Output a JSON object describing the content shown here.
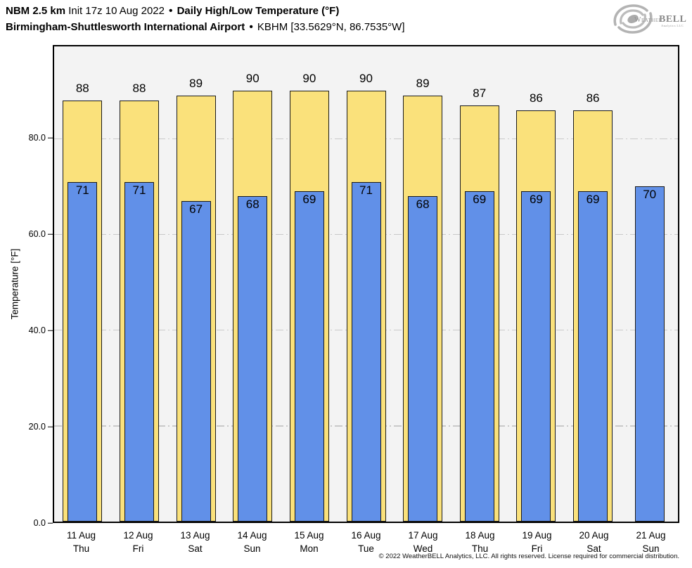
{
  "header": {
    "model": "NBM 2.5 km",
    "init": "Init 17z 10 Aug 2022",
    "sep": "•",
    "product": "Daily High/Low Temperature (°F)",
    "station": "Birmingham-Shuttlesworth International Airport",
    "station_id": "KBHM [33.5629°N, 86.7535°W]"
  },
  "logo": {
    "weather": "Weather",
    "bell": "BELL",
    "sub": "Analytics LLC"
  },
  "chart_data": {
    "type": "bar",
    "title": "NBM 2.5 km Init 17z 10 Aug 2022 • Daily High/Low Temperature (°F)",
    "subtitle": "Birmingham-Shuttlesworth International Airport • KBHM [33.5629°N, 86.7535°W]",
    "ylabel": "Temperature [°F]",
    "xlabel": "",
    "ylim": [
      0,
      99.3
    ],
    "yticks": [
      0,
      20,
      40,
      60,
      80
    ],
    "ytick_labels": [
      "0.0",
      "20.0",
      "40.0",
      "60.0",
      "80.0"
    ],
    "grid": "horizontal dash-dot gridlines at 20/40/60/80, drawn behind bars",
    "legend_position": "none (values labeled on bars)",
    "bar_style": {
      "high_color": "#FAE17B",
      "low_color": "#6190E8",
      "outline_color": "#1A1A1A",
      "plot_background": "#F3F3F3"
    },
    "categories": [
      {
        "date": "11 Aug",
        "day": "Thu"
      },
      {
        "date": "12 Aug",
        "day": "Fri"
      },
      {
        "date": "13 Aug",
        "day": "Sat"
      },
      {
        "date": "14 Aug",
        "day": "Sun"
      },
      {
        "date": "15 Aug",
        "day": "Mon"
      },
      {
        "date": "16 Aug",
        "day": "Tue"
      },
      {
        "date": "17 Aug",
        "day": "Wed"
      },
      {
        "date": "18 Aug",
        "day": "Thu"
      },
      {
        "date": "19 Aug",
        "day": "Fri"
      },
      {
        "date": "20 Aug",
        "day": "Sat"
      },
      {
        "date": "21 Aug",
        "day": "Sun"
      }
    ],
    "series": [
      {
        "name": "Daily High (°F)",
        "values": [
          88,
          88,
          89,
          90,
          90,
          90,
          89,
          87,
          86,
          86,
          null
        ]
      },
      {
        "name": "Daily Low (°F)",
        "values": [
          71,
          71,
          67,
          68,
          69,
          71,
          68,
          69,
          69,
          69,
          70
        ]
      }
    ]
  },
  "footer": {
    "copyright": "© 2022 WeatherBELL Analytics, LLC. All rights reserved. License required for commercial distribution."
  }
}
